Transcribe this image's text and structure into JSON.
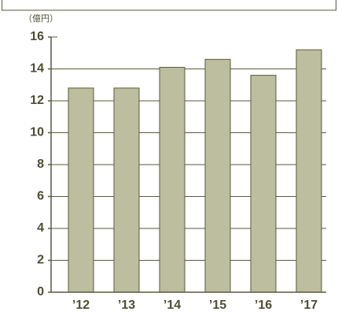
{
  "chart_data": {
    "type": "bar",
    "unit_label": "（億円）",
    "categories": [
      "’12",
      "’13",
      "’14",
      "’15",
      "’16",
      "’17"
    ],
    "values": [
      12.8,
      12.8,
      14.1,
      14.6,
      13.6,
      15.2
    ],
    "color": "#bdbd9f",
    "ylim": [
      0,
      16
    ],
    "yticks": [
      0,
      2,
      4,
      6,
      8,
      10,
      12,
      14,
      16
    ],
    "grid": true
  }
}
